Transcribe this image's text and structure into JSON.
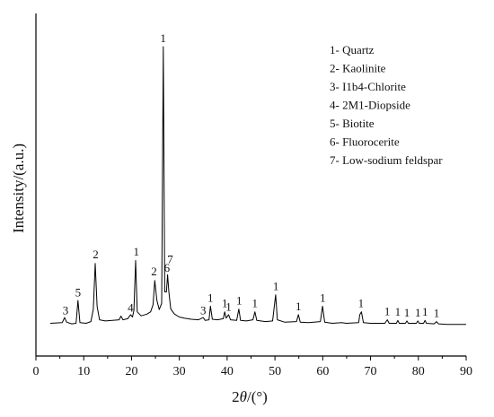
{
  "chart_data": {
    "type": "line",
    "xlabel_prefix": "2",
    "xlabel_theta": "θ",
    "xlabel_suffix": "/(°)",
    "ylabel": "Intensity/(a.u.)",
    "xlim": [
      0,
      90
    ],
    "xticks": [
      0,
      10,
      20,
      30,
      40,
      50,
      60,
      70,
      80,
      90
    ],
    "ylim": [
      0,
      1000
    ],
    "series": [
      {
        "points": [
          [
            3.0,
            30
          ],
          [
            5.5,
            32
          ],
          [
            6.0,
            50
          ],
          [
            6.4,
            34
          ],
          [
            7.5,
            28
          ],
          [
            8.4,
            30
          ],
          [
            8.8,
            110
          ],
          [
            9.2,
            32
          ],
          [
            10.5,
            30
          ],
          [
            11.5,
            36
          ],
          [
            12.0,
            80
          ],
          [
            12.4,
            240
          ],
          [
            12.8,
            90
          ],
          [
            13.3,
            42
          ],
          [
            14.5,
            38
          ],
          [
            16.0,
            40
          ],
          [
            17.4,
            42
          ],
          [
            17.8,
            55
          ],
          [
            18.2,
            42
          ],
          [
            19.2,
            46
          ],
          [
            19.8,
            60
          ],
          [
            20.2,
            52
          ],
          [
            20.5,
            75
          ],
          [
            20.85,
            250
          ],
          [
            21.2,
            70
          ],
          [
            22.0,
            56
          ],
          [
            23.2,
            62
          ],
          [
            24.0,
            70
          ],
          [
            24.5,
            95
          ],
          [
            24.85,
            180
          ],
          [
            25.3,
            110
          ],
          [
            25.8,
            78
          ],
          [
            26.3,
            100
          ],
          [
            26.65,
            1000
          ],
          [
            26.95,
            140
          ],
          [
            27.3,
            140
          ],
          [
            27.55,
            200
          ],
          [
            27.8,
            140
          ],
          [
            28.2,
            80
          ],
          [
            29.0,
            62
          ],
          [
            30.0,
            52
          ],
          [
            31.0,
            48
          ],
          [
            32.5,
            44
          ],
          [
            34.0,
            42
          ],
          [
            35.0,
            50
          ],
          [
            35.4,
            40
          ],
          [
            36.2,
            42
          ],
          [
            36.5,
            90
          ],
          [
            36.9,
            44
          ],
          [
            38.0,
            42
          ],
          [
            39.2,
            46
          ],
          [
            39.5,
            70
          ],
          [
            39.8,
            48
          ],
          [
            40.3,
            60
          ],
          [
            40.7,
            42
          ],
          [
            42.0,
            40
          ],
          [
            42.45,
            80
          ],
          [
            42.8,
            40
          ],
          [
            44.0,
            38
          ],
          [
            45.4,
            42
          ],
          [
            45.8,
            70
          ],
          [
            46.2,
            40
          ],
          [
            48.0,
            36
          ],
          [
            49.5,
            38
          ],
          [
            50.15,
            130
          ],
          [
            50.5,
            42
          ],
          [
            52.0,
            34
          ],
          [
            54.5,
            36
          ],
          [
            54.9,
            60
          ],
          [
            55.3,
            34
          ],
          [
            57.0,
            32
          ],
          [
            59.5,
            36
          ],
          [
            59.95,
            90
          ],
          [
            60.4,
            34
          ],
          [
            62.0,
            30
          ],
          [
            64.0,
            32
          ],
          [
            65.0,
            30
          ],
          [
            67.5,
            32
          ],
          [
            67.75,
            60
          ],
          [
            68.1,
            70
          ],
          [
            68.5,
            32
          ],
          [
            70.0,
            30
          ],
          [
            73.0,
            30
          ],
          [
            73.5,
            42
          ],
          [
            73.9,
            30
          ],
          [
            75.4,
            30
          ],
          [
            75.7,
            40
          ],
          [
            76.0,
            30
          ],
          [
            77.3,
            30
          ],
          [
            77.6,
            38
          ],
          [
            77.9,
            30
          ],
          [
            79.6,
            30
          ],
          [
            79.9,
            38
          ],
          [
            80.2,
            30
          ],
          [
            81.1,
            30
          ],
          [
            81.4,
            40
          ],
          [
            81.7,
            30
          ],
          [
            83.3,
            28
          ],
          [
            83.8,
            36
          ],
          [
            84.2,
            28
          ],
          [
            86.0,
            26
          ],
          [
            88.0,
            26
          ],
          [
            90.0,
            26
          ]
        ]
      }
    ],
    "peak_labels": [
      {
        "text": "3",
        "x": 6.2,
        "y": 62
      },
      {
        "text": "5",
        "x": 8.8,
        "y": 125
      },
      {
        "text": "2",
        "x": 12.5,
        "y": 258
      },
      {
        "text": "4",
        "x": 19.8,
        "y": 70
      },
      {
        "text": "1",
        "x": 21.0,
        "y": 268
      },
      {
        "text": "2",
        "x": 24.7,
        "y": 198
      },
      {
        "text": "1",
        "x": 26.6,
        "y": 1015
      },
      {
        "text": "6",
        "x": 27.4,
        "y": 210
      },
      {
        "text": "7",
        "x": 28.1,
        "y": 240
      },
      {
        "text": "3",
        "x": 35.0,
        "y": 62
      },
      {
        "text": "1",
        "x": 36.5,
        "y": 106
      },
      {
        "text": "1",
        "x": 39.5,
        "y": 86
      },
      {
        "text": "1",
        "x": 40.3,
        "y": 74
      },
      {
        "text": "1",
        "x": 42.5,
        "y": 96
      },
      {
        "text": "1",
        "x": 45.8,
        "y": 86
      },
      {
        "text": "1",
        "x": 50.2,
        "y": 146
      },
      {
        "text": "1",
        "x": 54.9,
        "y": 76
      },
      {
        "text": "1",
        "x": 60.0,
        "y": 106
      },
      {
        "text": "1",
        "x": 68.0,
        "y": 86
      },
      {
        "text": "1",
        "x": 73.5,
        "y": 58
      },
      {
        "text": "1",
        "x": 75.7,
        "y": 56
      },
      {
        "text": "1",
        "x": 77.6,
        "y": 54
      },
      {
        "text": "1",
        "x": 79.9,
        "y": 54
      },
      {
        "text": "1",
        "x": 81.4,
        "y": 56
      },
      {
        "text": "1",
        "x": 83.8,
        "y": 52
      }
    ],
    "legend_position": "top-right",
    "legend": [
      "1- Quartz",
      "2- Kaolinite",
      "3- I1b4-Chlorite",
      "4- 2M1-Diopside",
      "5- Biotite",
      "6- Fluorocerite",
      "7- Low-sodium feldspar"
    ],
    "grid": false
  },
  "colors": {
    "line": "#000000",
    "axis": "#000000",
    "background": "#ffffff"
  }
}
